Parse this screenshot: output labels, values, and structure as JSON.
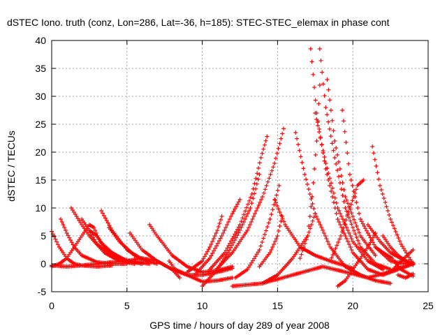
{
  "chart_data": {
    "type": "scatter",
    "title": "dSTEC Iono. truth (conz, Lon=286, Lat=-36, h=185): STEC-STEC_elemax in phase cont",
    "xlabel": "GPS time / hours of day 289 of year 2008",
    "ylabel": "dSTEC  / TECUs",
    "xlim": [
      0,
      25
    ],
    "ylim": [
      -5,
      40
    ],
    "x_ticks": [
      "0",
      "5",
      "10",
      "15",
      "20",
      "25"
    ],
    "y_ticks": [
      "-5",
      "0",
      "5",
      "10",
      "15",
      "20",
      "25",
      "30",
      "35",
      "40"
    ],
    "grid": true,
    "marker": "plus",
    "color": "#ff0000",
    "series": [
      {
        "points": [
          [
            0,
            5.8
          ],
          [
            0.5,
            3
          ],
          [
            1,
            1
          ],
          [
            1.5,
            0
          ],
          [
            2,
            -0.3
          ],
          [
            3,
            -0.5
          ],
          [
            4,
            -0.3
          ]
        ]
      },
      {
        "points": [
          [
            0,
            -0.5
          ],
          [
            0.5,
            0
          ],
          [
            1,
            1
          ],
          [
            1.5,
            3
          ],
          [
            2,
            5
          ],
          [
            2.5,
            7
          ],
          [
            2.8,
            6.5
          ],
          [
            3.2,
            4
          ],
          [
            4,
            2
          ],
          [
            5,
            0.5
          ],
          [
            6,
            0
          ]
        ]
      },
      {
        "points": [
          [
            0.6,
            8
          ],
          [
            1,
            5.5
          ],
          [
            1.5,
            3
          ],
          [
            2,
            1.5
          ],
          [
            3,
            0.3
          ],
          [
            4,
            0
          ],
          [
            5,
            0
          ]
        ]
      },
      {
        "points": [
          [
            1.3,
            10
          ],
          [
            2,
            7
          ],
          [
            2.5,
            5
          ],
          [
            3,
            3.5
          ],
          [
            4,
            1.5
          ],
          [
            5,
            0.5
          ],
          [
            6,
            0.3
          ]
        ]
      },
      {
        "points": [
          [
            0,
            -0.3
          ],
          [
            1,
            -0.5
          ],
          [
            2,
            -0.3
          ],
          [
            3,
            0
          ],
          [
            4,
            0.3
          ],
          [
            5,
            0.5
          ],
          [
            6,
            1
          ],
          [
            7,
            0.5
          ],
          [
            8,
            -1
          ],
          [
            9,
            -2
          ],
          [
            10,
            -3.2
          ],
          [
            11,
            -3
          ],
          [
            12,
            -2.5
          ]
        ]
      },
      {
        "points": [
          [
            2,
            8
          ],
          [
            2.5,
            6
          ],
          [
            3,
            3.5
          ],
          [
            3.5,
            2
          ],
          [
            4.5,
            0.5
          ],
          [
            5.5,
            0
          ]
        ]
      },
      {
        "points": [
          [
            2.5,
            6
          ],
          [
            3,
            5
          ],
          [
            3.5,
            3
          ],
          [
            4.5,
            1
          ],
          [
            5.5,
            0.3
          ],
          [
            6.5,
            0
          ]
        ]
      },
      {
        "points": [
          [
            3.3,
            9.5
          ],
          [
            4,
            6
          ],
          [
            5,
            2.5
          ],
          [
            6,
            0.8
          ],
          [
            7,
            0
          ]
        ]
      },
      {
        "points": [
          [
            3.8,
            6.5
          ],
          [
            4.5,
            4
          ],
          [
            5.5,
            1.5
          ],
          [
            6.5,
            0.3
          ]
        ]
      },
      {
        "points": [
          [
            5.2,
            5.5
          ],
          [
            6,
            2.5
          ],
          [
            7,
            0.5
          ],
          [
            8,
            -1
          ],
          [
            8.5,
            -2.5
          ]
        ]
      },
      {
        "points": [
          [
            6.5,
            7
          ],
          [
            7,
            5
          ],
          [
            8,
            1.5
          ],
          [
            9,
            -0.5
          ],
          [
            10,
            -1.5
          ],
          [
            11,
            -1.2
          ],
          [
            12,
            -0.5
          ]
        ]
      },
      {
        "points": [
          [
            7.8,
            0.5
          ],
          [
            8.2,
            -1
          ],
          [
            9,
            -2
          ],
          [
            10,
            -2
          ],
          [
            11,
            -1.5
          ],
          [
            12,
            -0.8
          ]
        ]
      },
      {
        "points": [
          [
            9,
            -1.5
          ],
          [
            10,
            0.5
          ],
          [
            10.5,
            3
          ],
          [
            11,
            6
          ],
          [
            11.3,
            8.5
          ]
        ]
      },
      {
        "points": [
          [
            9.5,
            -2
          ],
          [
            10.5,
            1
          ],
          [
            11.3,
            5
          ],
          [
            12,
            9
          ],
          [
            12.5,
            11.5
          ]
        ]
      },
      {
        "points": [
          [
            10,
            -4
          ],
          [
            11,
            -1
          ],
          [
            11.7,
            2
          ],
          [
            12.5,
            6
          ],
          [
            13.2,
            10
          ],
          [
            13.8,
            16
          ]
        ]
      },
      {
        "points": [
          [
            10.5,
            -1
          ],
          [
            11.5,
            2
          ],
          [
            12.5,
            7
          ],
          [
            13.3,
            12.5
          ],
          [
            13.9,
            19
          ],
          [
            14.3,
            22.8
          ]
        ]
      },
      {
        "points": [
          [
            11,
            -0.8
          ],
          [
            12,
            2
          ],
          [
            13,
            6
          ],
          [
            14,
            12
          ],
          [
            14.8,
            18
          ],
          [
            15.4,
            24.2
          ]
        ]
      },
      {
        "points": [
          [
            12.2,
            -2.5
          ],
          [
            13,
            -1
          ],
          [
            13.8,
            2.5
          ],
          [
            14.5,
            8
          ],
          [
            15.1,
            14
          ]
        ]
      },
      {
        "points": [
          [
            13.8,
            -0.5
          ],
          [
            14.5,
            2
          ],
          [
            15,
            5
          ],
          [
            15.3,
            8.5
          ]
        ]
      },
      {
        "points": [
          [
            14,
            -3.5
          ],
          [
            15,
            -2
          ],
          [
            16,
            1
          ],
          [
            17,
            5
          ],
          [
            17.5,
            9
          ]
        ]
      },
      {
        "points": [
          [
            12,
            -4
          ],
          [
            14,
            -3.5
          ],
          [
            16,
            -2
          ],
          [
            18,
            -0.5
          ],
          [
            20,
            -1.8
          ],
          [
            21,
            -2.5
          ],
          [
            22,
            -1.8
          ],
          [
            23,
            -0.8
          ],
          [
            24,
            0
          ]
        ]
      },
      {
        "points": [
          [
            14.8,
            11.5
          ],
          [
            15.5,
            7
          ],
          [
            16.5,
            3
          ],
          [
            17.5,
            1.5
          ],
          [
            18.5,
            0.5
          ],
          [
            20,
            -0.8
          ]
        ]
      },
      {
        "points": [
          [
            16.2,
            23.5
          ],
          [
            16.8,
            16
          ],
          [
            17.5,
            9
          ],
          [
            18.5,
            3
          ],
          [
            19.5,
            -0.5
          ],
          [
            20.5,
            -2
          ],
          [
            21.5,
            -3
          ],
          [
            22.5,
            -3.5
          ]
        ]
      },
      {
        "points": [
          [
            16.5,
            1
          ],
          [
            17,
            5
          ],
          [
            17.3,
            12
          ],
          [
            17.6,
            22
          ],
          [
            17.8,
            32
          ]
        ]
      },
      {
        "points": [
          [
            17.2,
            38.5
          ],
          [
            17.6,
            27
          ],
          [
            18.2,
            17
          ],
          [
            19,
            8
          ],
          [
            20,
            2
          ],
          [
            21,
            -1
          ],
          [
            22,
            -2
          ],
          [
            23,
            -1
          ],
          [
            24,
            0
          ]
        ]
      },
      {
        "points": [
          [
            17.8,
            38.5
          ],
          [
            18.2,
            28
          ],
          [
            18.8,
            19
          ],
          [
            19.5,
            10
          ],
          [
            20.5,
            3
          ],
          [
            21.5,
            0
          ],
          [
            22.5,
            -1
          ]
        ]
      },
      {
        "points": [
          [
            17.5,
            27
          ],
          [
            18.2,
            18
          ],
          [
            19,
            10
          ],
          [
            20,
            4
          ],
          [
            21,
            0.5
          ],
          [
            22,
            -1
          ]
        ]
      },
      {
        "points": [
          [
            18.3,
            33
          ],
          [
            18.8,
            22
          ],
          [
            19.5,
            12
          ],
          [
            20.5,
            5
          ],
          [
            21.5,
            1.5
          ]
        ]
      },
      {
        "points": [
          [
            18.5,
            0.5
          ],
          [
            19.2,
            5
          ],
          [
            19.8,
            10
          ],
          [
            20.3,
            14
          ],
          [
            20.7,
            15
          ]
        ]
      },
      {
        "points": [
          [
            19,
            -4
          ],
          [
            19.5,
            -3
          ],
          [
            20,
            -1
          ],
          [
            20.5,
            1
          ],
          [
            21,
            3
          ],
          [
            21.5,
            5.5
          ]
        ]
      },
      {
        "points": [
          [
            19.3,
            27.5
          ],
          [
            19.8,
            16
          ],
          [
            20.5,
            8
          ],
          [
            21.5,
            3
          ],
          [
            22.5,
            0.5
          ],
          [
            23.5,
            0
          ]
        ]
      },
      {
        "points": [
          [
            21.3,
            21
          ],
          [
            21.8,
            14
          ],
          [
            22.5,
            8
          ],
          [
            23.2,
            3.5
          ],
          [
            24,
            0
          ]
        ]
      },
      {
        "points": [
          [
            21,
            7
          ],
          [
            21.8,
            4
          ],
          [
            22.5,
            2
          ],
          [
            23.5,
            0.5
          ],
          [
            24,
            0.2
          ]
        ]
      },
      {
        "points": [
          [
            22,
            5
          ],
          [
            22.5,
            3
          ],
          [
            23,
            1.5
          ],
          [
            23.5,
            0.5
          ],
          [
            24,
            -0.2
          ]
        ]
      },
      {
        "points": [
          [
            21.5,
            3
          ],
          [
            22,
            2
          ],
          [
            22.6,
            1
          ],
          [
            23.2,
            -1
          ],
          [
            24,
            -2.2
          ]
        ]
      },
      {
        "points": [
          [
            22.5,
            -1.5
          ],
          [
            23.2,
            0.5
          ],
          [
            24,
            2.5
          ]
        ]
      },
      {
        "points": [
          [
            23,
            -2
          ],
          [
            23.5,
            -2.5
          ],
          [
            24,
            -1.8
          ]
        ]
      }
    ]
  }
}
